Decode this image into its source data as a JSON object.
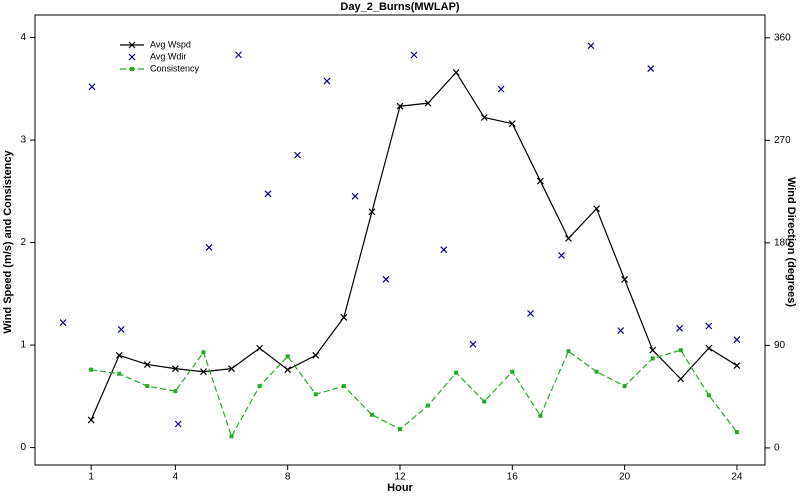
{
  "chart_data": {
    "type": "line",
    "title": "Day_2_Burns(MWLAP)",
    "x_label": "Hour",
    "y_label": "Wind Speed (m/s) and Consistency",
    "y2_label": "Wind Direction (degrees)",
    "xlim": [
      -1,
      25
    ],
    "xticks": [
      1,
      4,
      8,
      12,
      16,
      20,
      24
    ],
    "ylim": [
      -0.17,
      4.22
    ],
    "yticks": [
      0,
      1,
      2,
      3,
      4
    ],
    "y2lim": [
      -15,
      380
    ],
    "y2ticks": [
      0,
      90,
      180,
      270,
      360
    ],
    "legend": "upper left",
    "series": [
      {
        "name": "Avg Wspd",
        "color": "#000000",
        "line": "solid",
        "marker": "x",
        "x": [
          1,
          2,
          3,
          4,
          5,
          6,
          7,
          8,
          9,
          10,
          11,
          12,
          13,
          14,
          15,
          16,
          17,
          18,
          19,
          20,
          21,
          22,
          23,
          24
        ],
        "values": [
          0.27,
          0.9,
          0.81,
          0.77,
          0.74,
          0.77,
          0.97,
          0.76,
          0.9,
          1.27,
          2.3,
          3.33,
          3.36,
          3.66,
          3.22,
          3.16,
          2.6,
          2.04,
          2.33,
          1.64,
          0.95,
          0.67,
          0.97,
          0.8
        ]
      },
      {
        "name": "Avg Wdir",
        "color": "#00008b",
        "line": "none",
        "marker": "x",
        "axis": "y2",
        "x": [
          0,
          1.03,
          2.07,
          4.1,
          5.2,
          6.25,
          7.3,
          8.35,
          9.4,
          10.4,
          11.5,
          12.5,
          13.56,
          14.6,
          15.6,
          16.65,
          17.75,
          18.8,
          19.86,
          20.93,
          21.96,
          23.0,
          24.0
        ],
        "values": [
          110,
          317,
          104,
          21,
          176,
          345,
          223,
          257,
          322,
          221,
          148,
          345,
          174,
          91,
          315,
          118,
          169,
          353,
          103,
          333,
          105,
          107,
          95
        ]
      },
      {
        "name": "Consistency",
        "color": "#22aa22",
        "line": "dashed",
        "marker": "square",
        "x": [
          1,
          2,
          3,
          4,
          5,
          6,
          7,
          8,
          9,
          10,
          11,
          12,
          13,
          14,
          15,
          16,
          17,
          18,
          19,
          20,
          21,
          22,
          23,
          24
        ],
        "values": [
          0.76,
          0.72,
          0.6,
          0.55,
          0.93,
          0.11,
          0.6,
          0.89,
          0.52,
          0.6,
          0.32,
          0.18,
          0.41,
          0.73,
          0.45,
          0.74,
          0.31,
          0.94,
          0.74,
          0.6,
          0.87,
          0.95,
          0.51,
          0.15
        ]
      }
    ]
  }
}
